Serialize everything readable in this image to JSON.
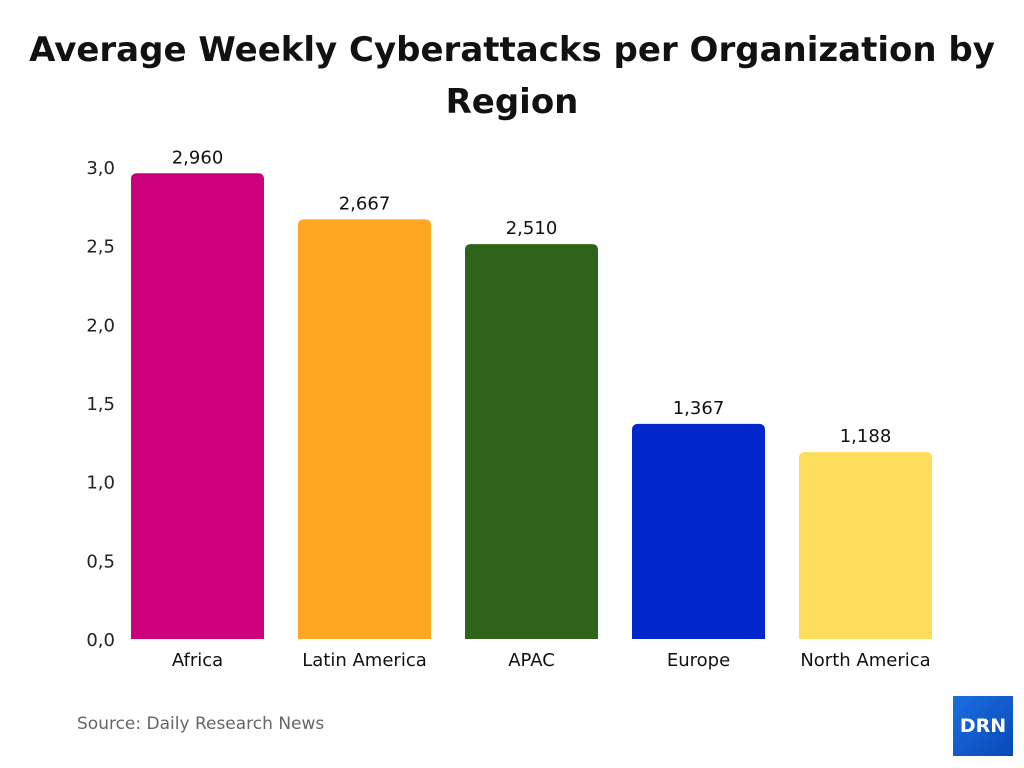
{
  "chart_data": {
    "type": "bar",
    "title": "Average Weekly Cyberattacks per Organization by Region",
    "categories": [
      "Africa",
      "Latin America",
      "APAC",
      "Europe",
      "North America"
    ],
    "values": [
      2960,
      2667,
      2510,
      1367,
      1188
    ],
    "data_labels": [
      "2,960",
      "2,667",
      "2,510",
      "1,367",
      "1,188"
    ],
    "colors": [
      "#cc007a",
      "#ffa623",
      "#2f6319",
      "#0026cc",
      "#ffdd5c"
    ],
    "ylim": [
      0,
      3000
    ],
    "yticks": [
      0,
      500,
      1000,
      1500,
      2000,
      2500,
      3000
    ],
    "ytick_labels": [
      "0,0",
      "0,5",
      "1,0",
      "1,5",
      "2,0",
      "2,5",
      "3,0"
    ],
    "grid": false,
    "legend": "none"
  },
  "source": "Source: Daily Research News",
  "logo": "DRN"
}
